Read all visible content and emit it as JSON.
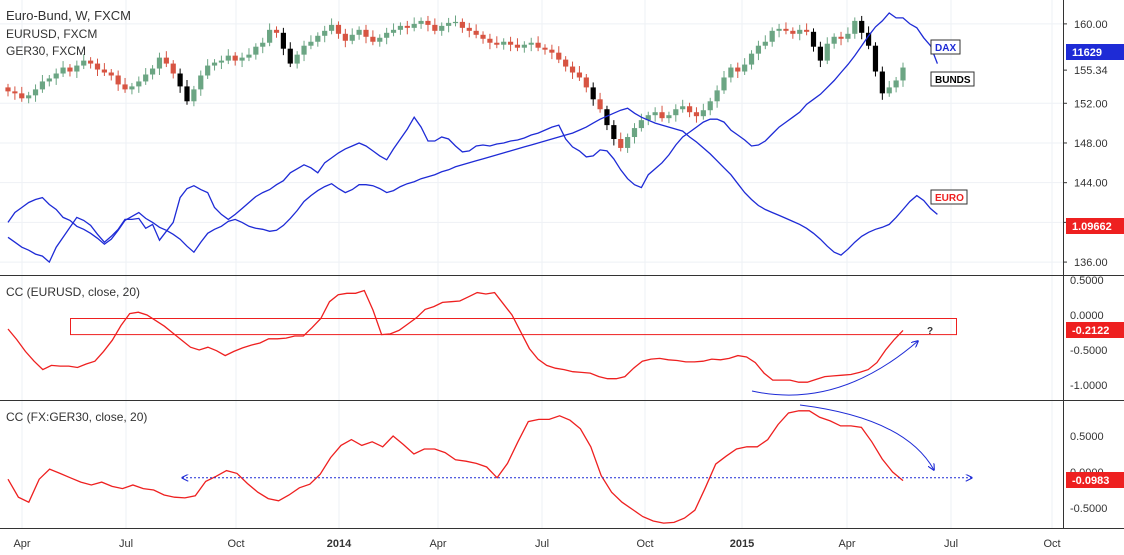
{
  "title": "Euro-Bund, W, FXCM",
  "overlays": [
    "EURUSD, FXCM",
    "GER30, FXCM"
  ],
  "indicators": [
    {
      "label": "CC (EURUSD, close, 20)"
    },
    {
      "label": "CC (FX:GER30, close, 20)"
    }
  ],
  "labels": {
    "dax": "DAX",
    "bunds": "BUNDS",
    "euro": "EURO"
  },
  "x_axis": {
    "ticks": [
      "Apr",
      "Jul",
      "Oct",
      "2014",
      "Apr",
      "Jul",
      "Oct",
      "2015",
      "Apr",
      "Jul",
      "Oct"
    ]
  },
  "price_axis": {
    "ticks": [
      "160.00",
      "155.34",
      "152.00",
      "148.00",
      "144.00",
      "140.00",
      "136.00"
    ]
  },
  "badges": {
    "dax_value": "11629",
    "euro_value": "1.09662",
    "cc1_value": "-0.2122",
    "cc2_value": "-0.0983"
  },
  "cc1_axis": {
    "ticks": [
      "0.5000",
      "0.0000",
      "-0.5000",
      "-1.0000"
    ]
  },
  "cc2_axis": {
    "ticks": [
      "0.5000",
      "0.0000",
      "-0.5000"
    ]
  },
  "annotations": {
    "question": "?"
  },
  "colors": {
    "up": "#6ba583",
    "down": "#d75442",
    "black": "#000000",
    "dax": "#1e2bd6",
    "cc": "#ee2020",
    "annot": "#1e2bd6"
  },
  "chart_data": [
    {
      "type": "candlestick",
      "title": "Euro-Bund, W, FXCM",
      "y_scale": [
        135.0,
        161.6
      ],
      "bund_close": [
        153.2,
        153.0,
        152.5,
        152.8,
        153.4,
        154.2,
        154.5,
        155.0,
        155.6,
        155.2,
        155.8,
        156.3,
        156.0,
        155.4,
        155.1,
        154.8,
        153.9,
        153.4,
        153.7,
        154.2,
        154.9,
        155.5,
        156.6,
        156.0,
        155.0,
        153.7,
        152.2,
        153.4,
        154.8,
        155.8,
        156.1,
        156.3,
        156.8,
        156.3,
        156.6,
        156.9,
        157.7,
        158.1,
        159.4,
        159.1,
        157.5,
        156.0,
        156.9,
        157.8,
        158.2,
        158.8,
        159.3,
        159.9,
        159.0,
        158.3,
        158.9,
        159.4,
        158.7,
        158.2,
        158.6,
        159.1,
        159.4,
        159.8,
        159.6,
        160.0,
        160.3,
        159.9,
        159.3,
        159.8,
        160.1,
        160.2,
        159.6,
        159.3,
        158.9,
        158.5,
        158.1,
        157.9,
        158.2,
        157.9,
        157.6,
        157.9,
        158.1,
        157.6,
        157.4,
        157.1,
        156.4,
        155.7,
        155.1,
        154.6,
        153.6,
        152.4,
        151.4,
        149.8,
        148.4,
        147.5,
        148.6,
        149.5,
        150.3,
        150.8,
        151.1,
        150.5,
        150.8,
        151.4,
        151.7,
        151.1,
        150.7,
        151.3,
        152.2,
        153.3,
        154.6,
        155.6,
        155.2,
        155.9,
        157.0,
        157.8,
        158.2,
        159.3,
        159.5,
        159.3,
        159.0,
        159.4,
        159.2,
        157.7,
        156.3,
        158.0,
        158.7,
        158.5,
        159.0,
        160.3,
        159.1,
        157.8,
        155.2,
        153.0,
        153.6,
        154.3,
        155.6
      ],
      "dax_line": [
        138.5,
        138.0,
        137.5,
        137.2,
        136.8,
        136.6,
        136.0,
        137.5,
        138.5,
        139.5,
        140.5,
        140.2,
        139.7,
        138.8,
        138.0,
        138.6,
        139.3,
        140.3,
        140.3,
        140.4,
        139.4,
        139.8,
        138.2,
        139.1,
        140.0,
        142.5,
        143.4,
        143.7,
        143.3,
        143.0,
        141.5,
        140.8,
        140.3,
        140.8,
        141.4,
        142.0,
        142.6,
        143.0,
        143.3,
        143.8,
        144.2,
        145.0,
        145.4,
        145.8,
        145.5,
        145.0,
        146.0,
        146.5,
        147.0,
        147.4,
        147.7,
        148.0,
        147.7,
        147.2,
        146.7,
        146.3,
        147.4,
        148.4,
        149.4,
        150.6,
        149.6,
        148.2,
        148.2,
        148.6,
        148.4,
        147.7,
        147.1,
        147.2,
        147.7,
        147.8,
        147.7,
        147.9,
        148.0,
        148.2,
        148.3,
        148.5,
        148.8,
        149.0,
        149.3,
        149.6,
        149.8,
        148.4,
        147.6,
        147.2,
        146.6,
        146.7,
        147.3,
        147.2,
        146.4,
        145.3,
        144.4,
        143.8,
        143.5,
        144.8,
        145.4,
        146.0,
        146.8,
        147.8,
        148.6,
        149.1,
        149.6,
        150.1,
        150.4,
        150.4,
        150.1,
        149.3,
        148.8,
        148.3,
        147.7,
        147.8,
        148.2,
        148.9,
        149.6,
        150.1,
        150.6,
        151.1,
        151.9,
        152.4,
        152.9,
        153.6,
        154.3,
        155.1,
        155.9,
        156.8,
        157.8,
        158.8,
        159.7,
        160.3,
        161.1,
        160.6,
        160.6,
        160.0,
        159.6,
        158.6,
        157.8,
        156.0
      ],
      "euro_line": [
        140.0,
        141.0,
        141.5,
        142.0,
        142.3,
        142.5,
        141.8,
        141.3,
        140.5,
        140.2,
        139.6,
        139.3,
        138.9,
        138.4,
        137.8,
        138.3,
        139.2,
        140.2,
        140.6,
        141.0,
        140.4,
        140.0,
        139.5,
        139.2,
        138.8,
        138.3,
        137.6,
        137.0,
        138.0,
        138.9,
        139.3,
        139.6,
        140.1,
        140.3,
        140.0,
        139.6,
        139.4,
        139.3,
        139.1,
        139.2,
        139.7,
        140.4,
        141.2,
        142.1,
        142.7,
        143.2,
        143.6,
        143.9,
        143.4,
        143.0,
        143.3,
        143.8,
        143.8,
        143.7,
        143.4,
        143.0,
        143.2,
        143.6,
        143.9,
        144.1,
        144.4,
        144.6,
        144.8,
        145.1,
        145.3,
        145.6,
        145.8,
        146.0,
        146.2,
        146.4,
        146.6,
        146.8,
        147.0,
        147.2,
        147.4,
        147.6,
        147.8,
        148.0,
        148.2,
        148.4,
        148.6,
        148.8,
        149.0,
        149.3,
        149.6,
        150.0,
        150.4,
        150.7,
        151.0,
        151.3,
        151.5,
        151.0,
        150.6,
        150.3,
        150.0,
        149.8,
        149.6,
        149.4,
        149.2,
        148.6,
        148.1,
        147.5,
        146.9,
        146.2,
        145.5,
        144.8,
        143.9,
        143.0,
        142.3,
        141.7,
        141.3,
        141.0,
        140.7,
        140.4,
        140.1,
        139.8,
        139.4,
        138.9,
        138.3,
        137.6,
        137.0,
        136.7,
        137.3,
        138.0,
        138.6,
        139.0,
        139.3,
        139.5,
        139.8,
        140.5,
        141.3,
        142.1,
        142.7,
        142.2,
        141.4,
        140.8
      ],
      "cc1": [
        -0.2,
        -0.35,
        -0.52,
        -0.66,
        -0.78,
        -0.72,
        -0.73,
        -0.73,
        -0.75,
        -0.7,
        -0.66,
        -0.52,
        -0.36,
        -0.15,
        0.02,
        0.04,
        0.0,
        -0.08,
        -0.16,
        -0.26,
        -0.36,
        -0.46,
        -0.5,
        -0.46,
        -0.51,
        -0.58,
        -0.52,
        -0.47,
        -0.43,
        -0.4,
        -0.34,
        -0.34,
        -0.33,
        -0.3,
        -0.3,
        -0.18,
        -0.05,
        0.19,
        0.29,
        0.31,
        0.31,
        0.35,
        0.07,
        -0.28,
        -0.27,
        -0.22,
        -0.13,
        -0.04,
        0.08,
        0.12,
        0.18,
        0.19,
        0.2,
        0.26,
        0.32,
        0.3,
        0.32,
        0.16,
        0.0,
        -0.24,
        -0.48,
        -0.63,
        -0.72,
        -0.76,
        -0.78,
        -0.81,
        -0.82,
        -0.83,
        -0.88,
        -0.91,
        -0.91,
        -0.88,
        -0.76,
        -0.66,
        -0.63,
        -0.62,
        -0.64,
        -0.65,
        -0.67,
        -0.67,
        -0.66,
        -0.63,
        -0.64,
        -0.62,
        -0.58,
        -0.6,
        -0.68,
        -0.83,
        -0.93,
        -0.93,
        -0.93,
        -0.96,
        -0.96,
        -0.92,
        -0.88,
        -0.87,
        -0.86,
        -0.85,
        -0.82,
        -0.78,
        -0.68,
        -0.5,
        -0.35,
        -0.22
      ],
      "cc2": [
        -0.1,
        -0.35,
        -0.42,
        -0.1,
        0.04,
        -0.02,
        -0.08,
        -0.14,
        -0.18,
        -0.14,
        -0.2,
        -0.23,
        -0.18,
        -0.23,
        -0.25,
        -0.32,
        -0.35,
        -0.36,
        -0.33,
        -0.13,
        -0.06,
        0.02,
        -0.02,
        -0.16,
        -0.28,
        -0.37,
        -0.4,
        -0.32,
        -0.22,
        -0.17,
        -0.03,
        0.2,
        0.37,
        0.45,
        0.37,
        0.42,
        0.35,
        0.5,
        0.38,
        0.25,
        0.32,
        0.32,
        0.27,
        0.17,
        0.15,
        0.12,
        0.07,
        -0.08,
        0.12,
        0.42,
        0.7,
        0.73,
        0.73,
        0.78,
        0.72,
        0.6,
        0.35,
        -0.05,
        -0.28,
        -0.42,
        -0.52,
        -0.62,
        -0.68,
        -0.71,
        -0.7,
        -0.64,
        -0.53,
        -0.22,
        0.11,
        0.22,
        0.32,
        0.35,
        0.35,
        0.45,
        0.66,
        0.82,
        0.85,
        0.85,
        0.76,
        0.71,
        0.64,
        0.64,
        0.62,
        0.42,
        0.18,
        0.0,
        -0.12
      ]
    }
  ]
}
